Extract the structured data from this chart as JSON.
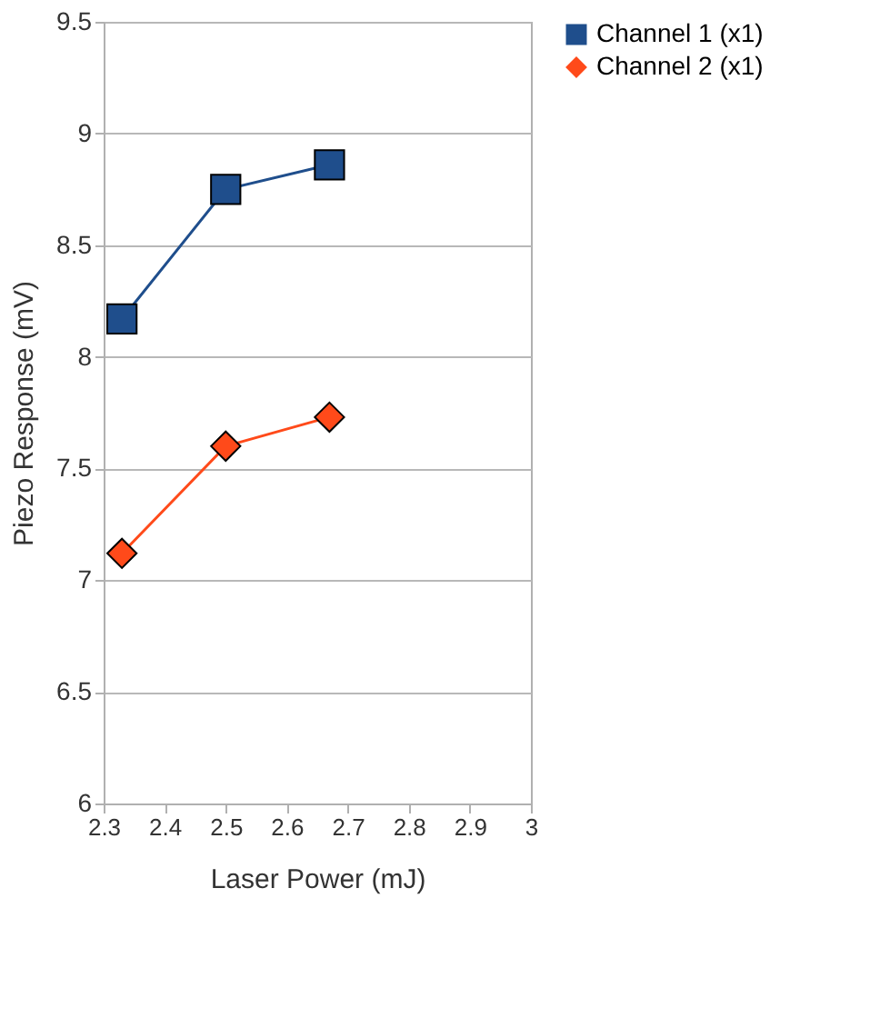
{
  "chart_data": {
    "type": "line",
    "xlabel": "Laser Power (mJ)",
    "ylabel": "Piezo Response (mV)",
    "series": [
      {
        "name": "Channel 1 (x1)",
        "color": "#1f4e8c",
        "marker": "square",
        "x": [
          2.33,
          2.5,
          2.67
        ],
        "values": [
          8.17,
          8.75,
          8.86
        ]
      },
      {
        "name": "Channel 2 (x1)",
        "color": "#ff4a1a",
        "marker": "diamond",
        "x": [
          2.33,
          2.5,
          2.67
        ],
        "values": [
          7.12,
          7.6,
          7.73
        ]
      }
    ],
    "xlim": [
      2.3,
      3
    ],
    "xticks": [
      2.3,
      2.4,
      2.5,
      2.6,
      2.7,
      2.8,
      2.9,
      3
    ],
    "ylim": [
      6,
      9.5
    ],
    "yticks": [
      6,
      6.5,
      7,
      7.5,
      8,
      8.5,
      9,
      9.5
    ],
    "grid": "y",
    "legend": "right",
    "line_style": "solid"
  }
}
